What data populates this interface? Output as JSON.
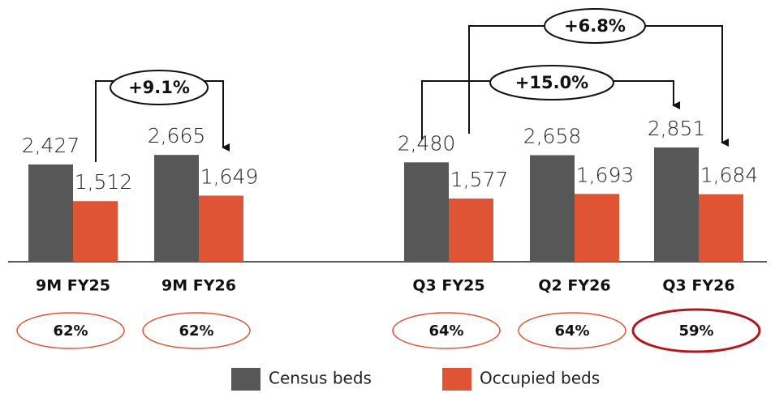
{
  "chart_data": {
    "type": "bar",
    "categories": [
      "9M FY25",
      "9M FY26",
      "Q3 FY25",
      "Q2 FY26",
      "Q3 FY26"
    ],
    "series": [
      {
        "name": "Census beds",
        "color": "#575757",
        "values": [
          2427,
          2665,
          2480,
          2658,
          2851
        ],
        "value_labels": [
          "2,427",
          "2,665",
          "2,480",
          "2,658",
          "2,851"
        ]
      },
      {
        "name": "Occupied beds",
        "color": "#e05436",
        "values": [
          1512,
          1649,
          1577,
          1693,
          1684
        ],
        "value_labels": [
          "1,512",
          "1,649",
          "1,577",
          "1,693",
          "1,684"
        ]
      }
    ],
    "occupancy_labels": [
      "62%",
      "62%",
      "64%",
      "64%",
      "59%"
    ],
    "annotations": [
      "+9.1%",
      "+6.8%",
      "+15.0%"
    ],
    "legend": "bottom"
  }
}
